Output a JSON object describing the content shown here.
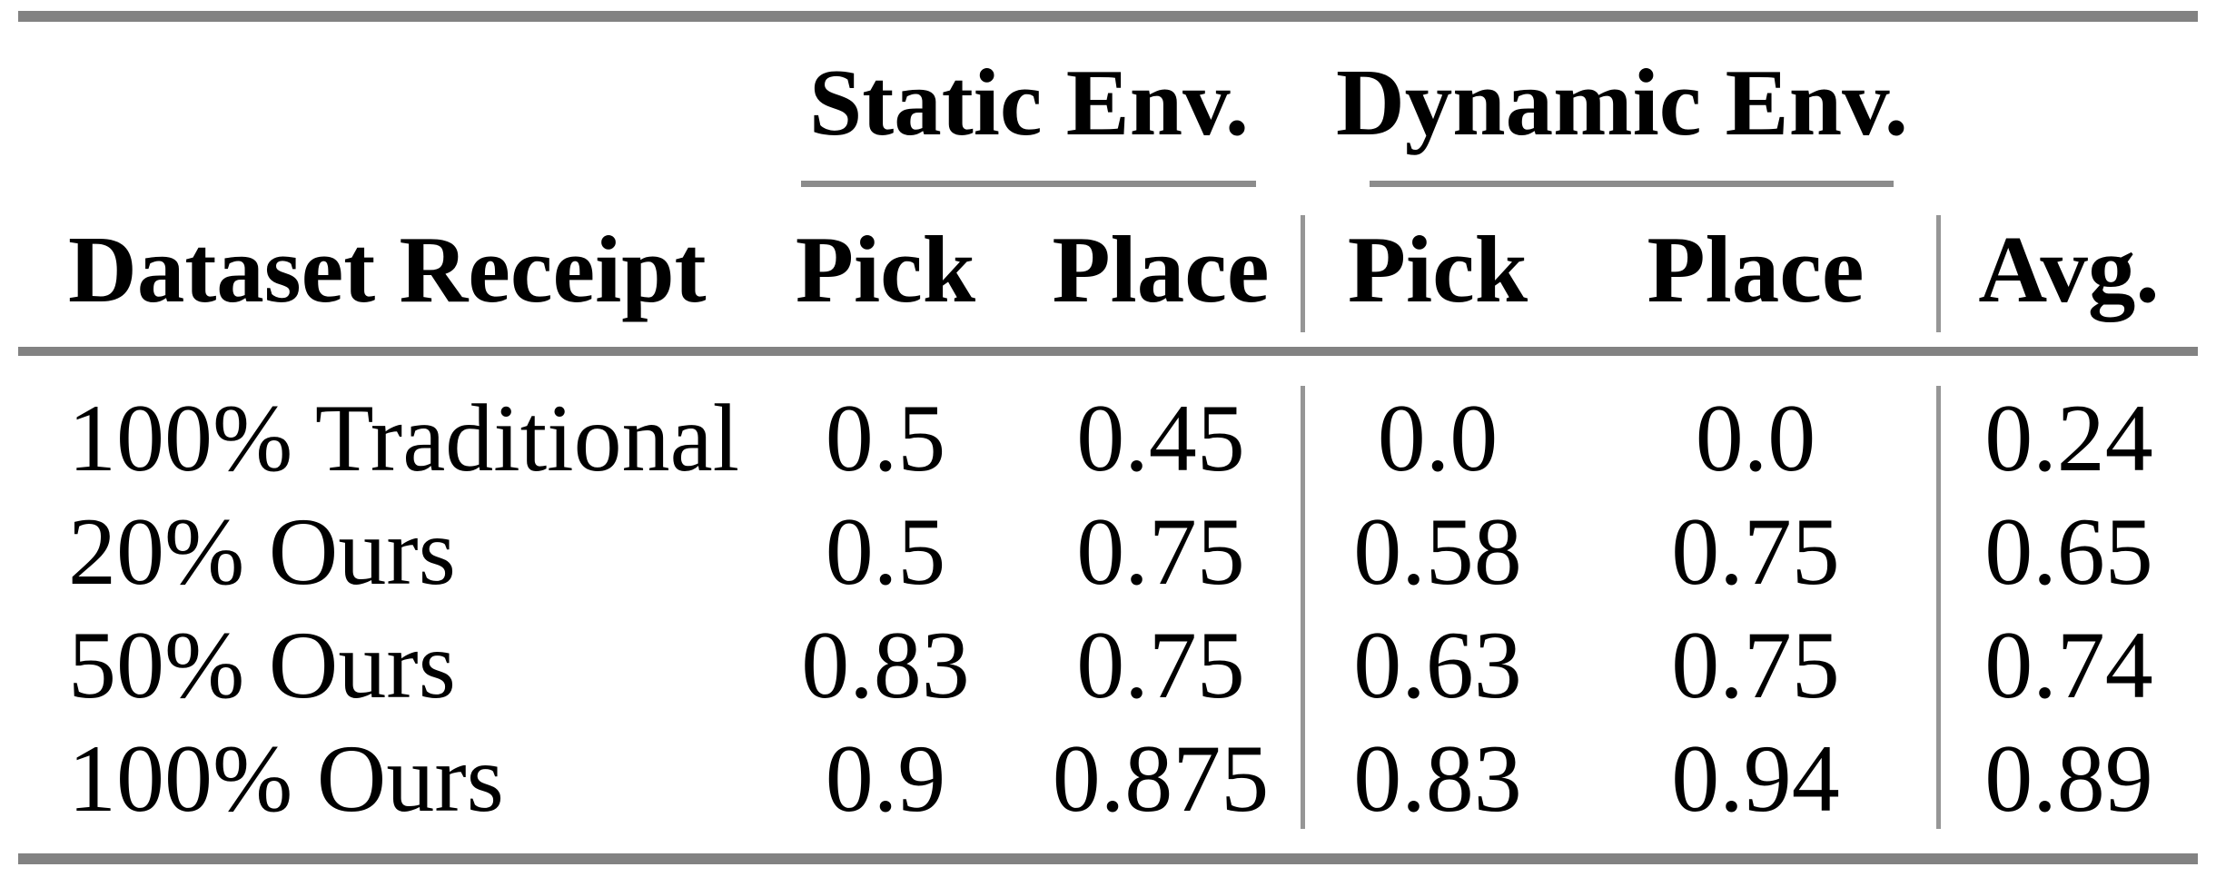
{
  "colors": {
    "background": "#ffffff",
    "rule": "#828282",
    "cmidrule": "#8c8c8c",
    "separator": "#969696",
    "text": "#000000"
  },
  "table": {
    "group_headers": [
      {
        "label": "Static Env."
      },
      {
        "label": "Dynamic Env."
      }
    ],
    "column_headers": {
      "dataset": "Dataset Receipt",
      "static_pick": "Pick",
      "static_place": "Place",
      "dynamic_pick": "Pick",
      "dynamic_place": "Place",
      "avg": "Avg."
    },
    "rows": [
      {
        "label": "100% Traditional",
        "static_pick": "0.5",
        "static_place": "0.45",
        "dynamic_pick": "0.0",
        "dynamic_place": "0.0",
        "avg": "0.24"
      },
      {
        "label": "20% Ours",
        "static_pick": "0.5",
        "static_place": "0.75",
        "dynamic_pick": "0.58",
        "dynamic_place": "0.75",
        "avg": "0.65"
      },
      {
        "label": "50% Ours",
        "static_pick": "0.83",
        "static_place": "0.75",
        "dynamic_pick": "0.63",
        "dynamic_place": "0.75",
        "avg": "0.74"
      },
      {
        "label": "100% Ours",
        "static_pick": "0.9",
        "static_place": "0.875",
        "dynamic_pick": "0.83",
        "dynamic_place": "0.94",
        "avg": "0.89"
      }
    ]
  },
  "chart_data": {
    "type": "table",
    "title": "",
    "column_groups": [
      "",
      "Static Env.",
      "Static Env.",
      "Dynamic Env.",
      "Dynamic Env.",
      ""
    ],
    "columns": [
      "Dataset Receipt",
      "Pick",
      "Place",
      "Pick",
      "Place",
      "Avg."
    ],
    "rows": [
      [
        "100% Traditional",
        0.5,
        0.45,
        0.0,
        0.0,
        0.24
      ],
      [
        "20% Ours",
        0.5,
        0.75,
        0.58,
        0.75,
        0.65
      ],
      [
        "50% Ours",
        0.83,
        0.75,
        0.63,
        0.75,
        0.74
      ],
      [
        "100% Ours",
        0.9,
        0.875,
        0.83,
        0.94,
        0.89
      ]
    ]
  }
}
